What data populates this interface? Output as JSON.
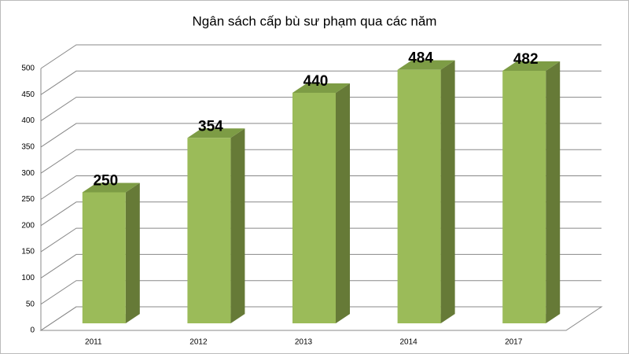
{
  "chart_data": {
    "type": "bar",
    "title": "Ngân sách cấp bù sư phạm qua các năm",
    "categories": [
      "2011",
      "2012",
      "2013",
      "2014",
      "2017"
    ],
    "values": [
      250,
      354,
      440,
      484,
      482
    ],
    "color": "#9bbb59",
    "ylim": [
      0,
      500
    ],
    "yticks": [
      0,
      50,
      100,
      150,
      200,
      250,
      300,
      350,
      400,
      450,
      500
    ],
    "grid": true
  }
}
